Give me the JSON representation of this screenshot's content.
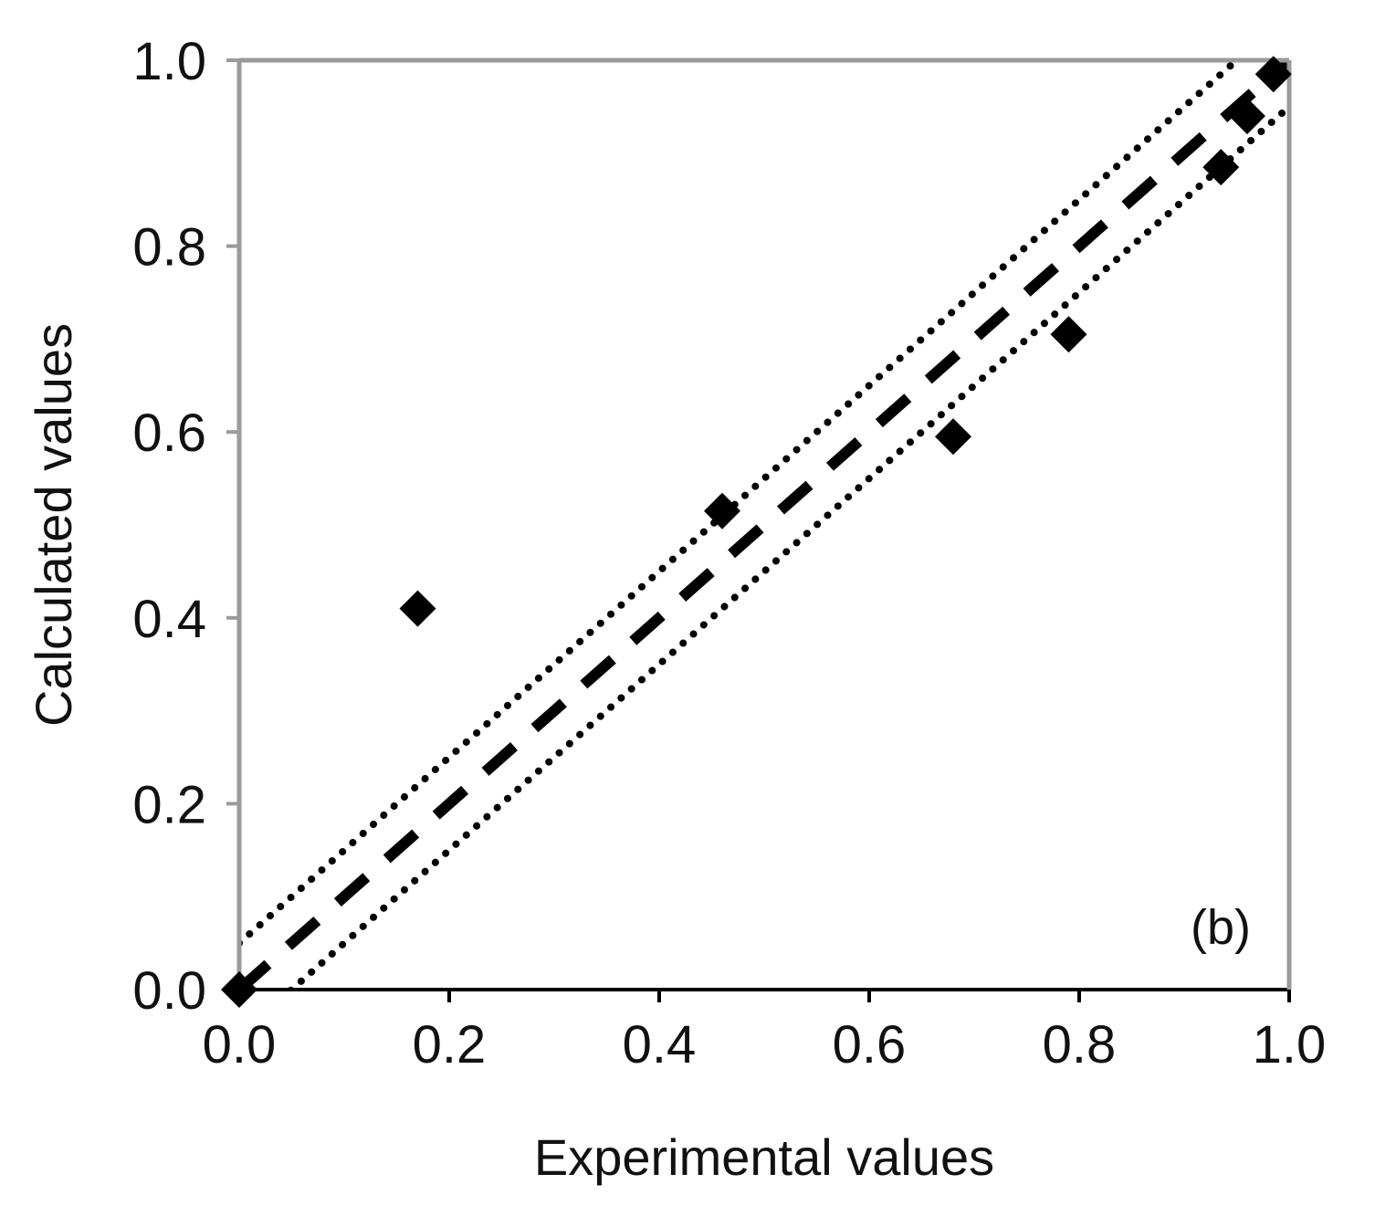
{
  "chart_data": {
    "type": "scatter",
    "title": "",
    "xlabel": "Experimental values",
    "ylabel": "Calculated values",
    "xlim": [
      0,
      1
    ],
    "ylim": [
      0,
      1
    ],
    "xticks": [
      "0.0",
      "0.2",
      "0.4",
      "0.6",
      "0.8",
      "1.0"
    ],
    "yticks": [
      "0.0",
      "0.2",
      "0.4",
      "0.6",
      "0.8",
      "1.0"
    ],
    "grid": false,
    "annotation": "(b)",
    "series": [
      {
        "marker": "diamond",
        "color": "#000000",
        "x": [
          0.0,
          0.17,
          0.46,
          0.68,
          0.79,
          0.935,
          0.96,
          0.985
        ],
        "y": [
          0.0,
          0.41,
          0.515,
          0.595,
          0.705,
          0.885,
          0.94,
          0.985
        ]
      }
    ],
    "reference_lines": [
      {
        "style": "dashed",
        "x": [
          0,
          1
        ],
        "y": [
          0,
          1
        ]
      },
      {
        "style": "dotted",
        "x": [
          0,
          1
        ],
        "y": [
          0.05,
          1.05
        ]
      },
      {
        "style": "dotted",
        "x": [
          0,
          1
        ],
        "y": [
          -0.05,
          0.95
        ]
      }
    ],
    "colors": {
      "frame": "#000000",
      "frame_top_right": "#9a9a9a",
      "markers": "#000000",
      "lines": "#000000"
    }
  }
}
